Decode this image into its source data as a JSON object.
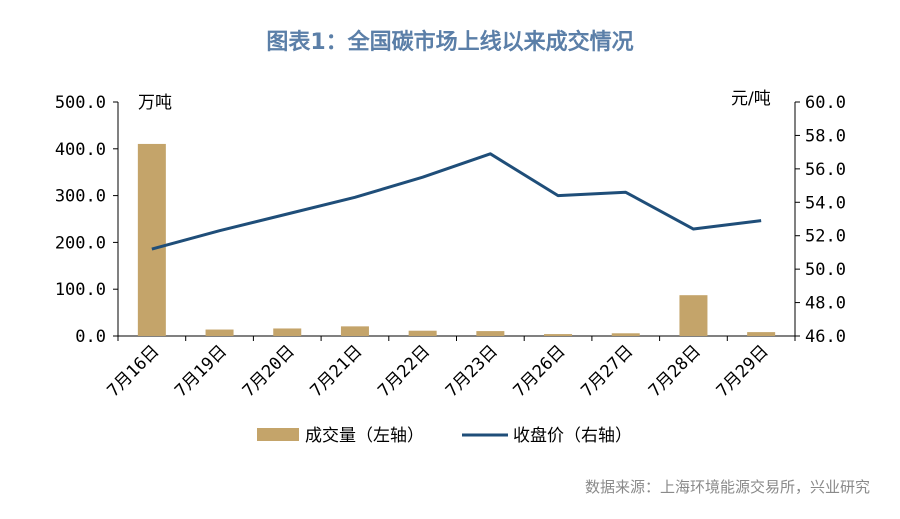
{
  "title": "图表1：全国碳市场上线以来成交情况",
  "source": "数据来源：上海环境能源交易所，兴业研究",
  "chart_data": {
    "type": "bar+line",
    "categories": [
      "7月16日",
      "7月19日",
      "7月20日",
      "7月21日",
      "7月22日",
      "7月23日",
      "7月26日",
      "7月27日",
      "7月28日",
      "7月29日"
    ],
    "left_axis": {
      "unit": "万吨",
      "ylim": [
        0,
        500
      ],
      "ticks": [
        "0.0",
        "100.0",
        "200.0",
        "300.0",
        "400.0",
        "500.0"
      ]
    },
    "right_axis": {
      "unit": "元/吨",
      "ylim": [
        46,
        60
      ],
      "ticks": [
        "46.0",
        "48.0",
        "50.0",
        "52.0",
        "54.0",
        "56.0",
        "58.0",
        "60.0"
      ]
    },
    "series": [
      {
        "name": "成交量（左轴）",
        "type": "bar",
        "axis": "left",
        "color": "#c4a46a",
        "values": [
          410.4,
          13.8,
          16.1,
          20.6,
          11.3,
          10.5,
          4.1,
          5.8,
          87.2,
          8.3
        ]
      },
      {
        "name": "收盘价（右轴）",
        "type": "line",
        "axis": "right",
        "color": "#1f4e79",
        "values": [
          51.2,
          52.3,
          53.3,
          54.3,
          55.5,
          56.9,
          54.4,
          54.6,
          52.4,
          52.9
        ]
      }
    ],
    "grid": false,
    "legend": "bottom"
  }
}
